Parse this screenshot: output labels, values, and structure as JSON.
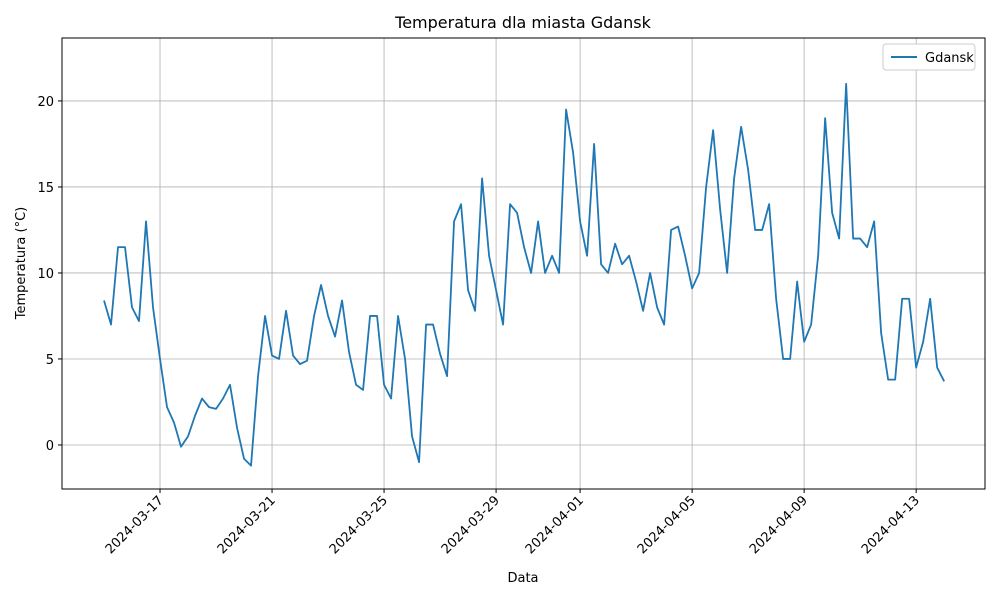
{
  "chart_data": {
    "type": "line",
    "title": "Temperatura dla miasta Gdansk",
    "x_label": "Data",
    "y_label": "Temperatura (°C)",
    "x": [
      "2024-03-15 00:00",
      "2024-03-15 06:00",
      "2024-03-15 12:00",
      "2024-03-15 18:00",
      "2024-03-16 00:00",
      "2024-03-16 06:00",
      "2024-03-16 12:00",
      "2024-03-16 18:00",
      "2024-03-17 00:00",
      "2024-03-17 06:00",
      "2024-03-17 12:00",
      "2024-03-17 18:00",
      "2024-03-18 00:00",
      "2024-03-18 06:00",
      "2024-03-18 12:00",
      "2024-03-18 18:00",
      "2024-03-19 00:00",
      "2024-03-19 06:00",
      "2024-03-19 12:00",
      "2024-03-19 18:00",
      "2024-03-20 00:00",
      "2024-03-20 06:00",
      "2024-03-20 12:00",
      "2024-03-20 18:00",
      "2024-03-21 00:00",
      "2024-03-21 06:00",
      "2024-03-21 12:00",
      "2024-03-21 18:00",
      "2024-03-22 00:00",
      "2024-03-22 06:00",
      "2024-03-22 12:00",
      "2024-03-22 18:00",
      "2024-03-23 00:00",
      "2024-03-23 06:00",
      "2024-03-23 12:00",
      "2024-03-23 18:00",
      "2024-03-24 00:00",
      "2024-03-24 06:00",
      "2024-03-24 12:00",
      "2024-03-24 18:00",
      "2024-03-25 00:00",
      "2024-03-25 06:00",
      "2024-03-25 12:00",
      "2024-03-25 18:00",
      "2024-03-26 00:00",
      "2024-03-26 06:00",
      "2024-03-26 12:00",
      "2024-03-26 18:00",
      "2024-03-27 00:00",
      "2024-03-27 06:00",
      "2024-03-27 12:00",
      "2024-03-27 18:00",
      "2024-03-28 00:00",
      "2024-03-28 06:00",
      "2024-03-28 12:00",
      "2024-03-28 18:00",
      "2024-03-29 00:00",
      "2024-03-29 06:00",
      "2024-03-29 12:00",
      "2024-03-29 18:00",
      "2024-03-30 00:00",
      "2024-03-30 06:00",
      "2024-03-30 12:00",
      "2024-03-30 18:00",
      "2024-03-31 00:00",
      "2024-03-31 06:00",
      "2024-03-31 12:00",
      "2024-03-31 18:00",
      "2024-04-01 00:00",
      "2024-04-01 06:00",
      "2024-04-01 12:00",
      "2024-04-01 18:00",
      "2024-04-02 00:00",
      "2024-04-02 06:00",
      "2024-04-02 12:00",
      "2024-04-02 18:00",
      "2024-04-03 00:00",
      "2024-04-03 06:00",
      "2024-04-03 12:00",
      "2024-04-03 18:00",
      "2024-04-04 00:00",
      "2024-04-04 06:00",
      "2024-04-04 12:00",
      "2024-04-04 18:00",
      "2024-04-05 00:00",
      "2024-04-05 06:00",
      "2024-04-05 12:00",
      "2024-04-05 18:00",
      "2024-04-06 00:00",
      "2024-04-06 06:00",
      "2024-04-06 12:00",
      "2024-04-06 18:00",
      "2024-04-07 00:00",
      "2024-04-07 06:00",
      "2024-04-07 12:00",
      "2024-04-07 18:00",
      "2024-04-08 00:00",
      "2024-04-08 06:00",
      "2024-04-08 12:00",
      "2024-04-08 18:00",
      "2024-04-09 00:00",
      "2024-04-09 06:00",
      "2024-04-09 12:00",
      "2024-04-09 18:00",
      "2024-04-10 00:00",
      "2024-04-10 06:00",
      "2024-04-10 12:00",
      "2024-04-10 18:00",
      "2024-04-11 00:00",
      "2024-04-11 06:00",
      "2024-04-11 12:00",
      "2024-04-11 18:00",
      "2024-04-12 00:00",
      "2024-04-12 06:00",
      "2024-04-12 12:00",
      "2024-04-12 18:00",
      "2024-04-13 00:00",
      "2024-04-13 06:00",
      "2024-04-13 12:00",
      "2024-04-13 18:00",
      "2024-04-14 00:00"
    ],
    "series": [
      {
        "name": "Gdansk",
        "color": "#1f77b4",
        "values": [
          8.4,
          7.0,
          11.5,
          11.5,
          8.0,
          7.2,
          13.0,
          8.0,
          5.0,
          2.2,
          1.3,
          -0.1,
          0.5,
          1.7,
          2.7,
          2.2,
          2.1,
          2.7,
          3.5,
          1.0,
          -0.8,
          -1.2,
          4.0,
          7.5,
          5.2,
          5.0,
          7.8,
          5.2,
          4.7,
          4.9,
          7.5,
          9.3,
          7.5,
          6.3,
          8.4,
          5.4,
          3.5,
          3.2,
          7.5,
          7.5,
          3.5,
          2.7,
          7.5,
          5.0,
          0.5,
          -1.0,
          7.0,
          7.0,
          5.3,
          4.0,
          13.0,
          14.0,
          9.0,
          7.8,
          15.5,
          11.0,
          9.0,
          7.0,
          14.0,
          13.5,
          11.5,
          10.0,
          13.0,
          10.0,
          11.0,
          10.0,
          19.5,
          17.0,
          13.0,
          11.0,
          17.5,
          10.5,
          10.0,
          11.7,
          10.5,
          11.0,
          9.5,
          7.8,
          10.0,
          8.0,
          7.0,
          12.5,
          12.7,
          11.0,
          9.1,
          10.0,
          15.0,
          18.3,
          13.7,
          10.0,
          15.5,
          18.5,
          16.0,
          12.5,
          12.5,
          14.0,
          8.5,
          5.0,
          5.0,
          9.5,
          6.0,
          7.0,
          11.0,
          19.0,
          13.5,
          12.0,
          21.0,
          12.0,
          12.0,
          11.5,
          13.0,
          6.5,
          3.8,
          3.8,
          8.5,
          8.5,
          4.5,
          6.0,
          8.5,
          4.5,
          3.7
        ]
      }
    ],
    "xlim": [
      "2024-03-13 12:00",
      "2024-04-15 11:00"
    ],
    "xticks": [
      "2024-03-17",
      "2024-03-21",
      "2024-03-25",
      "2024-03-29",
      "2024-04-01",
      "2024-04-05",
      "2024-04-09",
      "2024-04-13"
    ],
    "ylim": [
      -2.56,
      23.66
    ],
    "yticks": [
      0,
      5,
      10,
      15,
      20
    ],
    "grid": true,
    "legend": "upper right"
  }
}
